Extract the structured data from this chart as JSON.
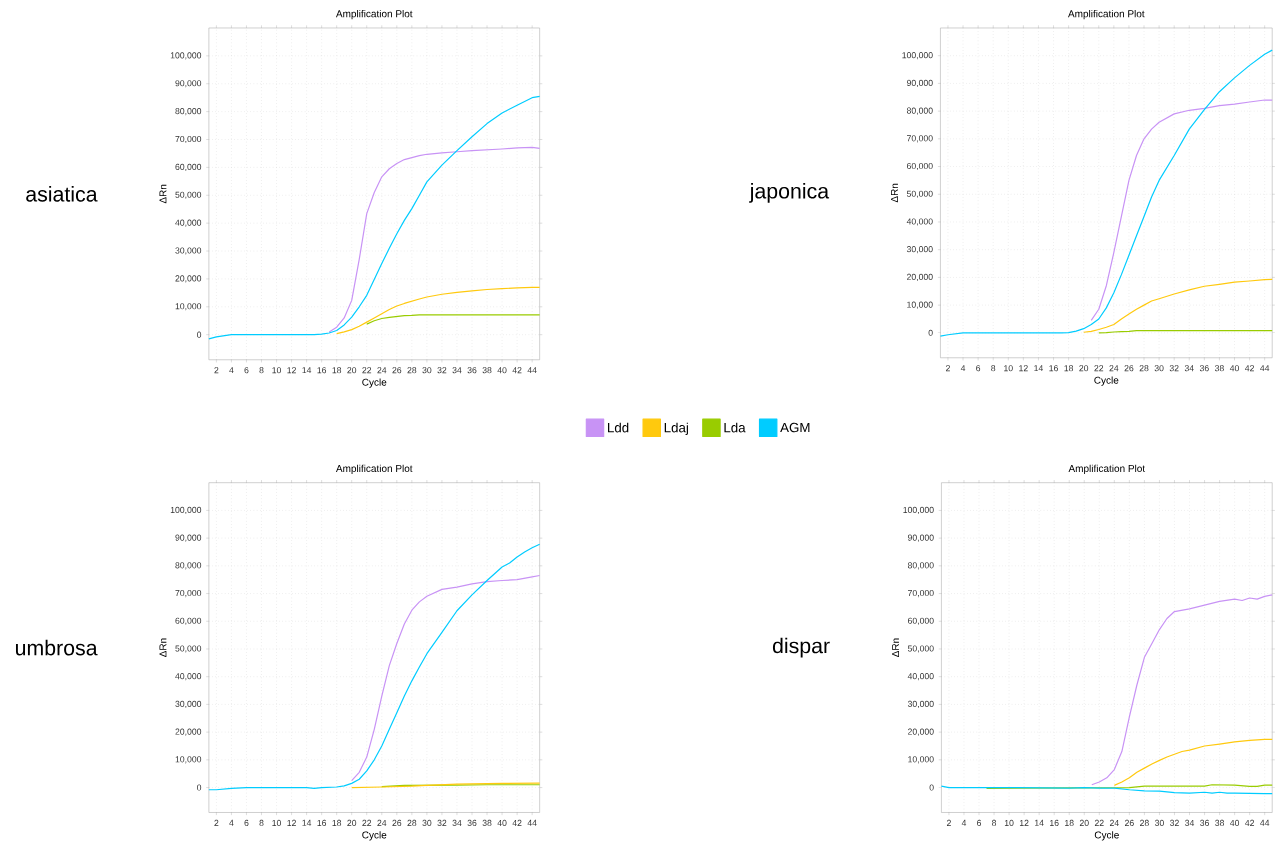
{
  "chart_data": [
    {
      "type": "line",
      "title": "Amplification Plot",
      "xlabel": "Cycle",
      "ylabel": "ΔRn",
      "annotations": [
        "asiatica"
      ],
      "xlim": [
        1,
        45
      ],
      "ylim": [
        -9000,
        110000
      ],
      "xticks": [
        2,
        4,
        6,
        8,
        10,
        12,
        14,
        16,
        18,
        20,
        22,
        24,
        26,
        28,
        30,
        32,
        34,
        36,
        38,
        40,
        42,
        44
      ],
      "yticks": [
        0,
        {
          "value": 10000,
          "label": "10,000"
        },
        {
          "value": 20000,
          "label": "20,000"
        },
        {
          "value": 30000,
          "label": "30,000"
        },
        {
          "value": 40000,
          "label": "40,000"
        },
        {
          "value": 50000,
          "label": "50,000"
        },
        {
          "value": 60000,
          "label": "60,000"
        },
        {
          "value": 70000,
          "label": "70,000"
        },
        {
          "value": 80000,
          "label": "80,000"
        },
        {
          "value": 90000,
          "label": "90,000"
        },
        {
          "value": 100000,
          "label": "100,000"
        }
      ],
      "grid": true,
      "legend": "bottom",
      "series": [
        {
          "name": "Ldd",
          "color": "#c893f5",
          "x": [
            17,
            18,
            19,
            20,
            21,
            22,
            23,
            24,
            25,
            26,
            27,
            28,
            29,
            30,
            32,
            34,
            36,
            38,
            40,
            42,
            44,
            45
          ],
          "values": [
            1000,
            2700,
            6000,
            12300,
            27000,
            43400,
            51000,
            56600,
            59500,
            61400,
            62800,
            63500,
            64200,
            64700,
            65200,
            65600,
            66000,
            66300,
            66600,
            67000,
            67200,
            66800
          ]
        },
        {
          "name": "Ldaj",
          "color": "#ffc90e",
          "x": [
            18,
            19,
            20,
            21,
            22,
            23,
            24,
            25,
            26,
            27,
            28,
            29,
            30,
            32,
            34,
            36,
            38,
            40,
            42,
            44,
            45
          ],
          "values": [
            400,
            1000,
            1800,
            3000,
            4500,
            6000,
            7500,
            9000,
            10300,
            11200,
            12000,
            12800,
            13500,
            14500,
            15200,
            15700,
            16200,
            16500,
            16800,
            17000,
            17000
          ]
        },
        {
          "name": "Lda",
          "color": "#99cc00",
          "x": [
            22,
            23,
            24,
            25,
            26,
            27,
            28,
            29,
            30,
            35,
            40,
            45
          ],
          "values": [
            3800,
            5000,
            5800,
            6200,
            6500,
            6800,
            6900,
            7100,
            7100,
            7100,
            7100,
            7100
          ]
        },
        {
          "name": "AGM",
          "color": "#00ccff",
          "x": [
            1,
            2,
            4,
            10,
            15,
            16,
            17,
            18,
            19,
            20,
            21,
            22,
            23,
            24,
            25,
            26,
            27,
            28,
            29,
            30,
            32,
            34,
            36,
            38,
            40,
            42,
            44,
            45
          ],
          "values": [
            -1500,
            -800,
            0,
            0,
            0,
            200,
            600,
            1500,
            3500,
            6300,
            10000,
            14100,
            19800,
            25500,
            31000,
            36200,
            41000,
            45200,
            50000,
            54800,
            60800,
            66000,
            71000,
            75700,
            79500,
            82300,
            85000,
            85500
          ]
        }
      ]
    },
    {
      "type": "line",
      "title": "Amplification Plot",
      "xlabel": "Cycle",
      "ylabel": "ΔRn",
      "annotations": [
        "japonica"
      ],
      "xlim": [
        1,
        45
      ],
      "ylim": [
        -9000,
        110000
      ],
      "xticks": [
        2,
        4,
        6,
        8,
        10,
        12,
        14,
        16,
        18,
        20,
        22,
        24,
        26,
        28,
        30,
        32,
        34,
        36,
        38,
        40,
        42,
        44
      ],
      "yticks": [
        0,
        {
          "value": 10000,
          "label": "10,000"
        },
        {
          "value": 20000,
          "label": "20,000"
        },
        {
          "value": 30000,
          "label": "30,000"
        },
        {
          "value": 40000,
          "label": "40,000"
        },
        {
          "value": 50000,
          "label": "50,000"
        },
        {
          "value": 60000,
          "label": "60,000"
        },
        {
          "value": 70000,
          "label": "70,000"
        },
        {
          "value": 80000,
          "label": "80,000"
        },
        {
          "value": 90000,
          "label": "90,000"
        },
        {
          "value": 100000,
          "label": "100,000"
        }
      ],
      "grid": true,
      "series": [
        {
          "color": "#c893f5",
          "x": [
            21,
            22,
            23,
            24,
            25,
            26,
            27,
            28,
            29,
            30,
            32,
            34,
            36,
            38,
            40,
            42,
            44,
            45
          ],
          "values": [
            4500,
            8500,
            17000,
            29000,
            42000,
            55000,
            64000,
            70000,
            73500,
            76000,
            79000,
            80300,
            81000,
            82000,
            82500,
            83300,
            84000,
            84000
          ]
        },
        {
          "color": "#ffc90e",
          "x": [
            20,
            21,
            22,
            23,
            24,
            25,
            26,
            27,
            28,
            29,
            30,
            32,
            34,
            36,
            38,
            40,
            42,
            44,
            45
          ],
          "values": [
            200,
            500,
            1200,
            2000,
            3000,
            5000,
            6800,
            8500,
            10000,
            11500,
            12300,
            14000,
            15500,
            16800,
            17500,
            18300,
            18700,
            19200,
            19300
          ]
        },
        {
          "color": "#99cc00",
          "x": [
            22,
            23,
            24,
            25,
            26,
            27,
            35,
            45
          ],
          "values": [
            0,
            100,
            300,
            400,
            500,
            800,
            800,
            800
          ]
        },
        {
          "color": "#00ccff",
          "x": [
            1,
            2,
            4,
            10,
            17,
            18,
            19,
            20,
            21,
            22,
            23,
            24,
            25,
            26,
            27,
            28,
            29,
            30,
            32,
            34,
            36,
            38,
            40,
            42,
            44,
            45
          ],
          "values": [
            -1200,
            -700,
            0,
            0,
            0,
            100,
            600,
            1500,
            3000,
            5000,
            9000,
            14500,
            21000,
            28000,
            35000,
            42000,
            49000,
            55000,
            64000,
            73500,
            80500,
            87000,
            92000,
            96500,
            100500,
            102000
          ]
        }
      ]
    },
    {
      "type": "line",
      "title": "Amplification Plot",
      "xlabel": "Cycle",
      "ylabel": "ΔRn",
      "annotations": [
        "umbrosa"
      ],
      "xlim": [
        1,
        45
      ],
      "ylim": [
        -9000,
        110000
      ],
      "xticks": [
        2,
        4,
        6,
        8,
        10,
        12,
        14,
        16,
        18,
        20,
        22,
        24,
        26,
        28,
        30,
        32,
        34,
        36,
        38,
        40,
        42,
        44
      ],
      "yticks": [
        0,
        {
          "value": 10000,
          "label": "10,000"
        },
        {
          "value": 20000,
          "label": "20,000"
        },
        {
          "value": 30000,
          "label": "30,000"
        },
        {
          "value": 40000,
          "label": "40,000"
        },
        {
          "value": 50000,
          "label": "50,000"
        },
        {
          "value": 60000,
          "label": "60,000"
        },
        {
          "value": 70000,
          "label": "70,000"
        },
        {
          "value": 80000,
          "label": "80,000"
        },
        {
          "value": 90000,
          "label": "90,000"
        },
        {
          "value": 100000,
          "label": "100,000"
        }
      ],
      "grid": true,
      "series": [
        {
          "color": "#c893f5",
          "x": [
            20,
            21,
            22,
            23,
            24,
            25,
            26,
            27,
            28,
            29,
            30,
            32,
            34,
            36,
            38,
            40,
            42,
            44,
            45
          ],
          "values": [
            2500,
            5500,
            11000,
            21000,
            33000,
            44000,
            52000,
            59000,
            64000,
            67000,
            69000,
            71500,
            72300,
            73500,
            74300,
            74700,
            75000,
            76000,
            76500
          ]
        },
        {
          "color": "#99cc00",
          "x": [
            24,
            27,
            34,
            38,
            45
          ],
          "values": [
            300,
            800,
            900,
            1000,
            1000
          ]
        },
        {
          "color": "#ffc90e",
          "x": [
            20,
            24,
            28,
            30,
            34,
            38,
            40,
            45
          ],
          "values": [
            0,
            200,
            500,
            800,
            1200,
            1400,
            1500,
            1600
          ]
        },
        {
          "color": "#00ccff",
          "x": [
            1,
            2,
            4,
            6,
            14,
            15,
            16,
            18,
            19,
            20,
            21,
            22,
            23,
            24,
            25,
            26,
            27,
            28,
            29,
            30,
            32,
            34,
            36,
            38,
            40,
            41,
            42,
            43,
            44,
            45
          ],
          "values": [
            -800,
            -800,
            -300,
            0,
            0,
            -300,
            0,
            200,
            600,
            1500,
            3000,
            6000,
            10000,
            15000,
            21000,
            27000,
            33000,
            38500,
            43500,
            48300,
            56000,
            63800,
            69500,
            74700,
            79600,
            81000,
            83200,
            85000,
            86500,
            87800
          ]
        }
      ]
    },
    {
      "type": "line",
      "title": "Amplification Plot",
      "xlabel": "Cycle",
      "ylabel": "ΔRn",
      "annotations": [
        "dispar"
      ],
      "xlim": [
        1,
        45
      ],
      "ylim": [
        -9000,
        110000
      ],
      "xticks": [
        2,
        4,
        6,
        8,
        10,
        12,
        14,
        16,
        18,
        20,
        22,
        24,
        26,
        28,
        30,
        32,
        34,
        36,
        38,
        40,
        42,
        44
      ],
      "yticks": [
        0,
        {
          "value": 10000,
          "label": "10,000"
        },
        {
          "value": 20000,
          "label": "20,000"
        },
        {
          "value": 30000,
          "label": "30,000"
        },
        {
          "value": 40000,
          "label": "40,000"
        },
        {
          "value": 50000,
          "label": "50,000"
        },
        {
          "value": 60000,
          "label": "60,000"
        },
        {
          "value": 70000,
          "label": "70,000"
        },
        {
          "value": 80000,
          "label": "80,000"
        },
        {
          "value": 90000,
          "label": "90,000"
        },
        {
          "value": 100000,
          "label": "100,000"
        }
      ],
      "grid": true,
      "series": [
        {
          "color": "#c893f5",
          "x": [
            21,
            22,
            23,
            24,
            25,
            26,
            27,
            28,
            29,
            30,
            31,
            32,
            34,
            36,
            38,
            40,
            41,
            42,
            43,
            44,
            45
          ],
          "values": [
            1000,
            2000,
            3500,
            6500,
            13000,
            25500,
            37000,
            47000,
            52000,
            57000,
            61000,
            63500,
            64500,
            65800,
            67200,
            68000,
            67500,
            68400,
            68000,
            69000,
            69500
          ]
        },
        {
          "color": "#ffc90e",
          "x": [
            24,
            25,
            26,
            27,
            28,
            29,
            30,
            31,
            32,
            33,
            34,
            36,
            38,
            40,
            42,
            44,
            45
          ],
          "values": [
            800,
            2000,
            3500,
            5500,
            7000,
            8500,
            9800,
            11000,
            12000,
            13000,
            13500,
            15000,
            15700,
            16500,
            17000,
            17400,
            17400
          ]
        },
        {
          "color": "#99cc00",
          "x": [
            7,
            26,
            28,
            30,
            36,
            37,
            40,
            42,
            43,
            44,
            45
          ],
          "values": [
            -300,
            0,
            500,
            500,
            500,
            1000,
            900,
            400,
            400,
            900,
            900
          ]
        },
        {
          "color": "#00ccff",
          "x": [
            1,
            2,
            10,
            18,
            20,
            22,
            24,
            26,
            28,
            30,
            32,
            34,
            36,
            37,
            38,
            39,
            40,
            44,
            45
          ],
          "values": [
            500,
            0,
            0,
            -200,
            0,
            -200,
            -200,
            -800,
            -1200,
            -1300,
            -1800,
            -2000,
            -1700,
            -2000,
            -1700,
            -2000,
            -2000,
            -2200,
            -2200
          ]
        }
      ]
    }
  ]
}
